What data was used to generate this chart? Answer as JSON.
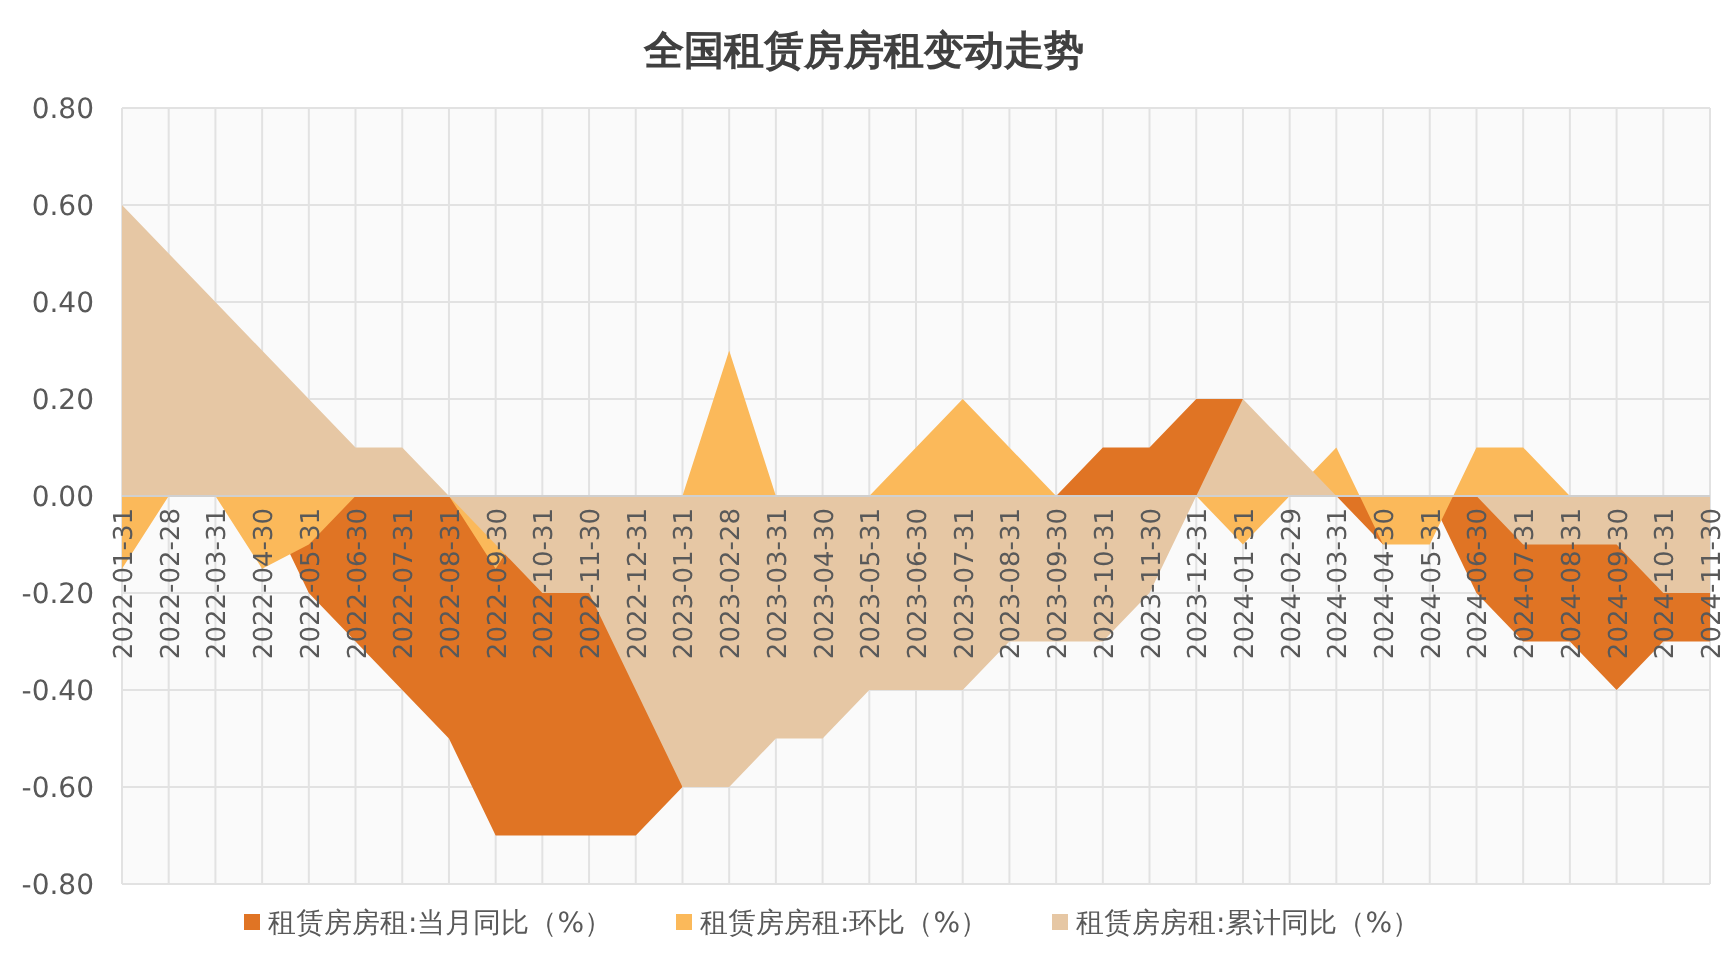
{
  "chart_data": {
    "type": "area",
    "title": "全国租赁房房租变动走势",
    "categories": [
      "2022-01-31",
      "2022-02-28",
      "2022-03-31",
      "2022-04-30",
      "2022-05-31",
      "2022-06-30",
      "2022-07-31",
      "2022-08-31",
      "2022-09-30",
      "2022-10-31",
      "2022-11-30",
      "2022-12-31",
      "2023-01-31",
      "2023-02-28",
      "2023-03-31",
      "2023-04-30",
      "2023-05-31",
      "2023-06-30",
      "2023-07-31",
      "2023-08-31",
      "2023-09-30",
      "2023-10-31",
      "2023-11-30",
      "2023-12-31",
      "2024-01-31",
      "2024-02-29",
      "2024-03-31",
      "2024-04-30",
      "2024-05-31",
      "2024-06-30",
      "2024-07-31",
      "2024-08-31",
      "2024-09-30",
      "2024-10-31",
      "2024-11-30"
    ],
    "series": [
      {
        "name": "租赁房房租:当月同比（%）",
        "color": "#e07424",
        "values": [
          0,
          0,
          0,
          0,
          -0.2,
          -0.3,
          -0.4,
          -0.5,
          -0.7,
          -0.7,
          -0.7,
          -0.7,
          -0.6,
          null,
          null,
          null,
          null,
          null,
          null,
          null,
          0,
          0.1,
          0.1,
          0.2,
          0.2,
          null,
          0,
          -0.1,
          0,
          -0.2,
          -0.3,
          -0.3,
          -0.4,
          -0.3,
          -0.3
        ]
      },
      {
        "name": "租赁房房租:环比（%）",
        "color": "#fbb95a",
        "values": [
          -0.15,
          0,
          0,
          -0.15,
          -0.1,
          0,
          0,
          0,
          -0.15,
          0,
          0,
          0,
          0,
          0.3,
          0,
          0,
          0,
          0.1,
          0.2,
          0.1,
          0,
          0,
          0,
          0,
          -0.1,
          0,
          0.1,
          -0.1,
          -0.1,
          0.1,
          0.1,
          0,
          0,
          0,
          0
        ]
      },
      {
        "name": "租赁房房租:累计同比（%）",
        "color": "#e6c7a4",
        "values": [
          0.6,
          0.5,
          0.4,
          0.3,
          0.2,
          0.1,
          0.1,
          0,
          -0.1,
          -0.2,
          -0.2,
          -0.4,
          -0.6,
          -0.6,
          -0.5,
          -0.5,
          -0.4,
          -0.4,
          -0.4,
          -0.3,
          -0.3,
          -0.3,
          -0.2,
          0,
          0.2,
          0.1,
          0,
          0,
          0,
          0,
          -0.1,
          -0.1,
          -0.1,
          -0.2,
          -0.2
        ]
      }
    ],
    "ylim": [
      -0.8,
      0.8
    ],
    "yticks": [
      {
        "value": -0.8,
        "label": "-0.80"
      },
      {
        "value": -0.6,
        "label": "-0.60"
      },
      {
        "value": -0.4,
        "label": "-0.40"
      },
      {
        "value": -0.2,
        "label": "-0.20"
      },
      {
        "value": 0,
        "label": "0.00"
      },
      {
        "value": 0.2,
        "label": "0.20"
      },
      {
        "value": 0.4,
        "label": "0.40"
      },
      {
        "value": 0.6,
        "label": "0.60"
      },
      {
        "value": 0.8,
        "label": "0.80"
      }
    ],
    "grid": true,
    "legend": "bottom"
  }
}
